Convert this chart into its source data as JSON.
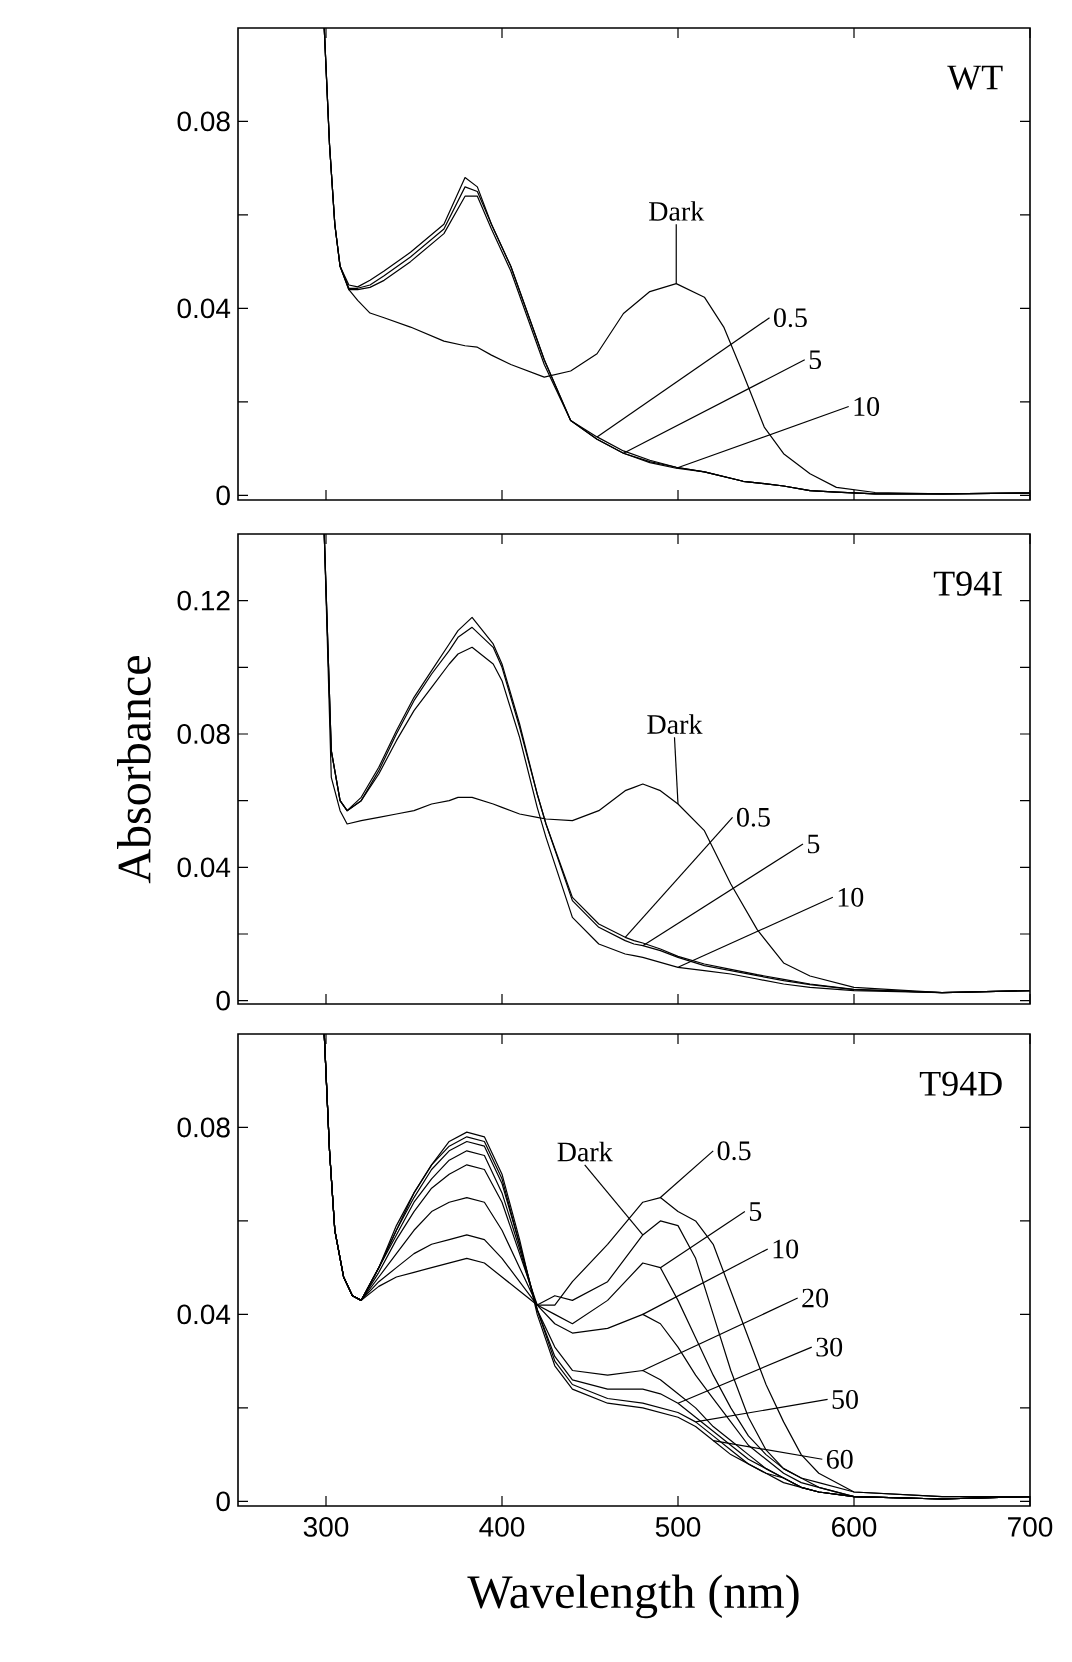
{
  "chart_data": [
    {
      "type": "line",
      "title": "WT",
      "xlim": [
        250,
        700
      ],
      "xticks": [
        300,
        400,
        500,
        600,
        700
      ],
      "ylim": [
        -0.001,
        0.1
      ],
      "yticks": [
        0,
        {
          "value": 0.02,
          "label": null
        },
        0.04,
        {
          "value": 0.06,
          "label": null
        },
        0.08
      ],
      "tick_labels": "y",
      "x": [
        299,
        302,
        305,
        308,
        313,
        318,
        325,
        333,
        348,
        367,
        379,
        386,
        394,
        405,
        424,
        439,
        454,
        469,
        484,
        499,
        515,
        526,
        537,
        549,
        560,
        575,
        590,
        612,
        650,
        700
      ],
      "series": [
        {
          "color": "#000000",
          "values": [
            0.1,
            0.075,
            0.058,
            0.049,
            0.044,
            0.0417,
            0.039,
            0.038,
            0.036,
            0.033,
            0.032,
            0.0317,
            0.03,
            0.028,
            0.0253,
            0.0266,
            0.0303,
            0.0389,
            0.0436,
            0.0453,
            0.0424,
            0.036,
            0.026,
            0.0146,
            0.0089,
            0.0046,
            0.0017,
            0.0006,
            0.0003,
            0.0005
          ]
        },
        {
          "color": "#000000",
          "values": [
            0.1,
            0.075,
            0.058,
            0.049,
            0.045,
            0.0446,
            0.046,
            0.048,
            0.052,
            0.058,
            0.068,
            0.066,
            0.058,
            0.049,
            0.029,
            0.016,
            0.0125,
            0.0095,
            0.0075,
            0.006,
            0.005,
            0.004,
            0.003,
            0.0025,
            0.002,
            0.001,
            0.0007,
            0.0003,
            0.0003,
            0.0005
          ]
        },
        {
          "color": "#000000",
          "values": [
            0.1,
            0.075,
            0.058,
            0.049,
            0.0443,
            0.0443,
            0.045,
            0.047,
            0.051,
            0.057,
            0.066,
            0.065,
            0.058,
            0.049,
            0.029,
            0.016,
            0.012,
            0.009,
            0.0072,
            0.006,
            0.005,
            0.004,
            0.003,
            0.0025,
            0.002,
            0.001,
            0.0007,
            0.0003,
            0.0003,
            0.0005
          ]
        },
        {
          "color": "#000000",
          "values": [
            0.1,
            0.075,
            0.058,
            0.049,
            0.044,
            0.044,
            0.0445,
            0.046,
            0.05,
            0.056,
            0.064,
            0.064,
            0.057,
            0.048,
            0.028,
            0.016,
            0.012,
            0.009,
            0.007,
            0.0058,
            0.005,
            0.004,
            0.003,
            0.0025,
            0.002,
            0.001,
            0.0007,
            0.0003,
            0.0003,
            0.0005
          ]
        }
      ],
      "annotations": [
        {
          "text": "Dark",
          "x": 499,
          "y": 0.0453
        },
        {
          "text": "0.5",
          "x": 454,
          "y": 0.0125
        },
        {
          "text": "5",
          "x": 469,
          "y": 0.009
        },
        {
          "text": "10",
          "x": 499,
          "y": 0.0058
        }
      ]
    },
    {
      "type": "line",
      "title": "T94I",
      "ylabel": "Absorbance",
      "xlim": [
        250,
        700
      ],
      "xticks": [
        300,
        400,
        500,
        600,
        700
      ],
      "ylim": [
        -0.001,
        0.14
      ],
      "yticks": [
        0,
        {
          "value": 0.02,
          "label": null
        },
        0.04,
        {
          "value": 0.06,
          "label": null
        },
        0.08,
        {
          "value": 0.1,
          "label": null
        },
        0.12
      ],
      "tick_labels": "y",
      "x": [
        299,
        303,
        308,
        312,
        320,
        330,
        340,
        350,
        360,
        370,
        375,
        383,
        395,
        400,
        410,
        420,
        425,
        440,
        455,
        470,
        475,
        480,
        490,
        500,
        515,
        530,
        545,
        560,
        575,
        600,
        650,
        700
      ],
      "series": [
        {
          "color": "#000000",
          "values": [
            0.14,
            0.067,
            0.057,
            0.053,
            0.054,
            0.055,
            0.056,
            0.057,
            0.059,
            0.06,
            0.061,
            0.061,
            0.059,
            0.058,
            0.056,
            0.055,
            0.0545,
            0.054,
            0.057,
            0.063,
            0.064,
            0.065,
            0.063,
            0.059,
            0.051,
            0.035,
            0.0213,
            0.0113,
            0.0074,
            0.004,
            0.0024,
            0.003
          ]
        },
        {
          "color": "#000000",
          "values": [
            0.14,
            0.075,
            0.06,
            0.057,
            0.061,
            0.07,
            0.081,
            0.091,
            0.099,
            0.107,
            0.111,
            0.115,
            0.107,
            0.101,
            0.083,
            0.062,
            0.053,
            0.031,
            0.023,
            0.019,
            0.018,
            0.0173,
            0.0155,
            0.0133,
            0.011,
            0.0094,
            0.0078,
            0.0064,
            0.005,
            0.0034,
            0.0024,
            0.003
          ]
        },
        {
          "color": "#000000",
          "values": [
            0.14,
            0.075,
            0.06,
            0.057,
            0.06,
            0.069,
            0.08,
            0.09,
            0.098,
            0.105,
            0.109,
            0.112,
            0.106,
            0.1,
            0.082,
            0.062,
            0.053,
            0.03,
            0.022,
            0.018,
            0.017,
            0.0165,
            0.015,
            0.013,
            0.0105,
            0.009,
            0.0075,
            0.006,
            0.0048,
            0.0033,
            0.0024,
            0.003
          ]
        },
        {
          "color": "#000000",
          "values": [
            0.14,
            0.075,
            0.06,
            0.057,
            0.06,
            0.068,
            0.078,
            0.087,
            0.094,
            0.101,
            0.104,
            0.106,
            0.101,
            0.096,
            0.079,
            0.058,
            0.049,
            0.025,
            0.017,
            0.014,
            0.0135,
            0.013,
            0.0115,
            0.01,
            0.009,
            0.008,
            0.0065,
            0.005,
            0.004,
            0.003,
            0.0024,
            0.003
          ]
        }
      ],
      "annotations": [
        {
          "text": "Dark",
          "x": 500,
          "y": 0.059
        },
        {
          "text": "0.5",
          "x": 470,
          "y": 0.019
        },
        {
          "text": "5",
          "x": 480,
          "y": 0.0165
        },
        {
          "text": "10",
          "x": 500,
          "y": 0.01
        }
      ]
    },
    {
      "type": "line",
      "title": "T94D",
      "xlabel": "Wavelength (nm)",
      "xlim": [
        250,
        700
      ],
      "xticks": [
        300,
        400,
        500,
        600,
        700
      ],
      "ylim": [
        -0.001,
        0.1
      ],
      "yticks": [
        0,
        {
          "value": 0.02,
          "label": null
        },
        0.04,
        {
          "value": 0.06,
          "label": null
        },
        0.08
      ],
      "x": [
        299,
        302,
        305,
        310,
        315,
        320,
        330,
        340,
        350,
        360,
        370,
        380,
        390,
        400,
        410,
        420,
        430,
        440,
        460,
        480,
        490,
        500,
        510,
        520,
        530,
        540,
        550,
        560,
        570,
        580,
        600,
        650,
        700
      ],
      "series": [
        {
          "color": "#000000",
          "values": [
            0.1,
            0.075,
            0.058,
            0.048,
            0.044,
            0.043,
            0.046,
            0.048,
            0.049,
            0.05,
            0.051,
            0.052,
            0.051,
            0.048,
            0.045,
            0.042,
            0.044,
            0.043,
            0.047,
            0.057,
            0.06,
            0.059,
            0.052,
            0.04,
            0.028,
            0.018,
            0.011,
            0.007,
            0.005,
            0.004,
            0.002,
            0.001,
            0.001
          ]
        },
        {
          "color": "#000000",
          "values": [
            0.1,
            0.075,
            0.058,
            0.048,
            0.044,
            0.043,
            0.047,
            0.05,
            0.053,
            0.055,
            0.056,
            0.057,
            0.056,
            0.052,
            0.047,
            0.042,
            0.042,
            0.047,
            0.055,
            0.064,
            0.065,
            0.062,
            0.06,
            0.055,
            0.045,
            0.035,
            0.025,
            0.017,
            0.01,
            0.006,
            0.002,
            0.001,
            0.001
          ]
        },
        {
          "color": "#000000",
          "values": [
            0.1,
            0.075,
            0.058,
            0.048,
            0.044,
            0.043,
            0.048,
            0.053,
            0.058,
            0.062,
            0.064,
            0.065,
            0.064,
            0.058,
            0.05,
            0.042,
            0.04,
            0.038,
            0.043,
            0.051,
            0.05,
            0.043,
            0.035,
            0.027,
            0.02,
            0.014,
            0.01,
            0.007,
            0.005,
            0.003,
            0.001,
            0.0005,
            0.001
          ]
        },
        {
          "color": "#000000",
          "values": [
            0.1,
            0.075,
            0.058,
            0.048,
            0.044,
            0.043,
            0.049,
            0.056,
            0.062,
            0.067,
            0.07,
            0.072,
            0.071,
            0.064,
            0.053,
            0.042,
            0.038,
            0.036,
            0.037,
            0.04,
            0.038,
            0.033,
            0.027,
            0.022,
            0.017,
            0.012,
            0.009,
            0.006,
            0.004,
            0.003,
            0.001,
            0.0005,
            0.001
          ]
        },
        {
          "color": "#000000",
          "values": [
            0.1,
            0.075,
            0.058,
            0.048,
            0.044,
            0.043,
            0.05,
            0.057,
            0.064,
            0.069,
            0.073,
            0.075,
            0.074,
            0.066,
            0.054,
            0.041,
            0.033,
            0.028,
            0.027,
            0.028,
            0.026,
            0.023,
            0.02,
            0.016,
            0.013,
            0.01,
            0.007,
            0.005,
            0.003,
            0.002,
            0.001,
            0.0005,
            0.001
          ]
        },
        {
          "color": "#000000",
          "values": [
            0.1,
            0.075,
            0.058,
            0.048,
            0.044,
            0.043,
            0.05,
            0.058,
            0.065,
            0.071,
            0.075,
            0.077,
            0.076,
            0.068,
            0.055,
            0.041,
            0.031,
            0.026,
            0.024,
            0.024,
            0.023,
            0.021,
            0.018,
            0.015,
            0.012,
            0.009,
            0.007,
            0.005,
            0.003,
            0.002,
            0.001,
            0.0005,
            0.001
          ]
        },
        {
          "color": "#000000",
          "values": [
            0.1,
            0.075,
            0.058,
            0.048,
            0.044,
            0.043,
            0.05,
            0.058,
            0.066,
            0.072,
            0.076,
            0.078,
            0.077,
            0.069,
            0.055,
            0.041,
            0.03,
            0.025,
            0.022,
            0.021,
            0.02,
            0.019,
            0.017,
            0.014,
            0.011,
            0.008,
            0.006,
            0.005,
            0.003,
            0.002,
            0.001,
            0.0005,
            0.001
          ]
        },
        {
          "color": "#000000",
          "values": [
            0.1,
            0.075,
            0.058,
            0.048,
            0.044,
            0.043,
            0.05,
            0.059,
            0.066,
            0.072,
            0.077,
            0.079,
            0.078,
            0.07,
            0.056,
            0.04,
            0.029,
            0.024,
            0.021,
            0.02,
            0.019,
            0.018,
            0.016,
            0.013,
            0.01,
            0.008,
            0.006,
            0.004,
            0.003,
            0.002,
            0.001,
            0.0005,
            0.001
          ]
        }
      ],
      "annotations": [
        {
          "text": "Dark",
          "x": 480,
          "y": 0.057
        },
        {
          "text": "0.5",
          "x": 490,
          "y": 0.065
        },
        {
          "text": "5",
          "x": 490,
          "y": 0.05
        },
        {
          "text": "10",
          "x": 480,
          "y": 0.04
        },
        {
          "text": "20",
          "x": 480,
          "y": 0.028
        },
        {
          "text": "30",
          "x": 500,
          "y": 0.021
        },
        {
          "text": "50",
          "x": 510,
          "y": 0.017
        },
        {
          "text": "60",
          "x": 520,
          "y": 0.013
        }
      ]
    }
  ]
}
